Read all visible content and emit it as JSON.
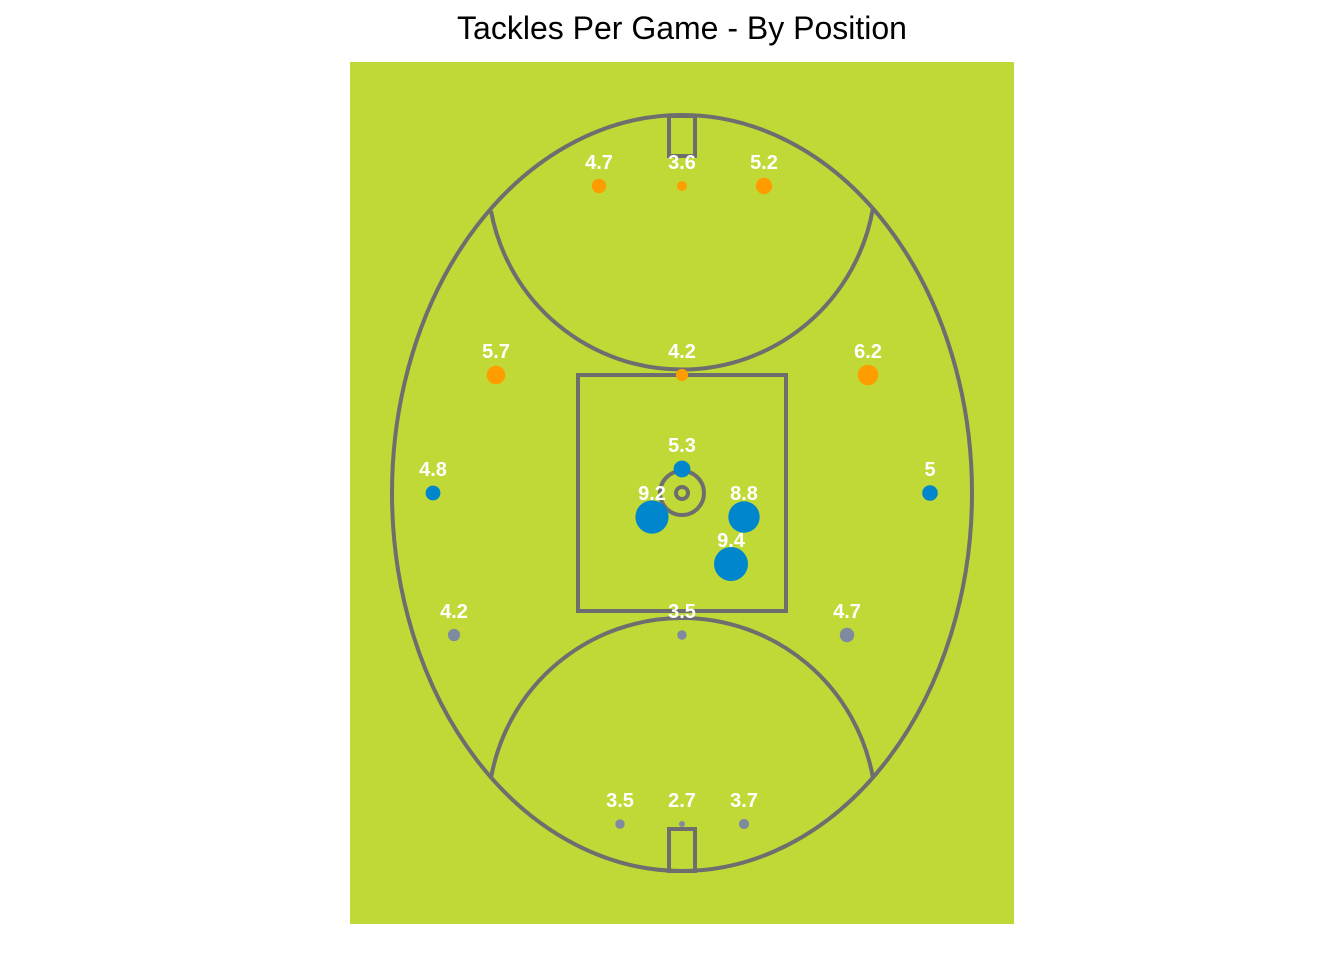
{
  "chart_data": {
    "type": "scatter",
    "title": "Tackles Per Game - By Position",
    "xlabel": "",
    "ylabel": "",
    "grid": false,
    "legend": "none",
    "colors": {
      "field": "#c0d936",
      "lines": "#6e6e6e",
      "forward": "#ff9c00",
      "midfield": "#0086cd",
      "back": "#7e8aa0",
      "label": "#ffffff"
    },
    "points": [
      {
        "group": "forward",
        "value": 4.7,
        "label": "4.7"
      },
      {
        "group": "forward",
        "value": 3.6,
        "label": "3.6"
      },
      {
        "group": "forward",
        "value": 5.2,
        "label": "5.2"
      },
      {
        "group": "forward",
        "value": 5.7,
        "label": "5.7"
      },
      {
        "group": "forward",
        "value": 4.2,
        "label": "4.2"
      },
      {
        "group": "forward",
        "value": 6.2,
        "label": "6.2"
      },
      {
        "group": "midfield",
        "value": 5.3,
        "label": "5.3"
      },
      {
        "group": "midfield",
        "value": 4.8,
        "label": "4.8"
      },
      {
        "group": "midfield",
        "value": 5,
        "label": "5"
      },
      {
        "group": "midfield",
        "value": 9.2,
        "label": "9.2"
      },
      {
        "group": "midfield",
        "value": 8.8,
        "label": "8.8"
      },
      {
        "group": "midfield",
        "value": 9.4,
        "label": "9.4"
      },
      {
        "group": "back",
        "value": 4.2,
        "label": "4.2"
      },
      {
        "group": "back",
        "value": 3.5,
        "label": "3.5"
      },
      {
        "group": "back",
        "value": 4.7,
        "label": "4.7"
      },
      {
        "group": "back",
        "value": 3.5,
        "label": "3.5"
      },
      {
        "group": "back",
        "value": 2.7,
        "label": "2.7"
      },
      {
        "group": "back",
        "value": 3.7,
        "label": "3.7"
      }
    ]
  }
}
